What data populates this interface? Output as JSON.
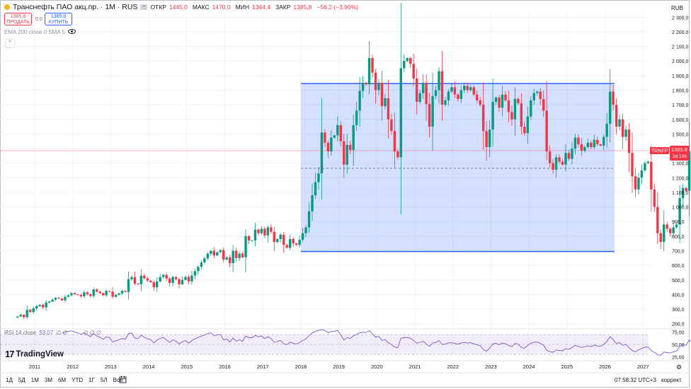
{
  "header": {
    "title": "Транснефть ПАО акц.пр. · 1М · RUS",
    "open_label": "ОТКР",
    "open": "1445,0",
    "high_label": "МАКС",
    "high": "1470,0",
    "low_label": "МИН",
    "low": "1344,4",
    "close_label": "ЗАКР",
    "close": "1385,8",
    "change": "−56,2 (−3,90%)"
  },
  "trade": {
    "sell_price": "1385,8",
    "sell_label": "ПРОДАТЬ",
    "spread": "0,0",
    "buy_price": "1385,8",
    "buy_label": "КУПИТЬ"
  },
  "indicator_label": "EMA 200 close 0 SMA 5",
  "collapse_icon": "chevron-up-icon",
  "rsi": {
    "label": "RSI 14 close",
    "value": "53,07",
    "extra1": "∅ ∅",
    "extra2": "∅ ∅ ∅"
  },
  "logo": {
    "mark": "17",
    "text": "TradingView"
  },
  "currency": "RUB",
  "price_tag": {
    "symbol": "TRNFP",
    "price": "1385,8",
    "countdown": "2d 16h"
  },
  "colors": {
    "up": "#089981",
    "down": "#f23645",
    "rect_fill": "#2962ff",
    "rsi_line": "#7e57c2",
    "rsi_band": "#7e57c2"
  },
  "bottom": {
    "timeframes": [
      "1Д",
      "5Д",
      "1М",
      "3М",
      "6М",
      "YTD",
      "1Г",
      "5Л",
      "Все"
    ],
    "time": "07:58:32 UTC+3",
    "adjust": "коррект."
  },
  "chart_data": {
    "type": "candlestick",
    "x_axis": {
      "labels": [
        "2011",
        "2012",
        "2013",
        "2014",
        "2015",
        "2016",
        "2017",
        "2018",
        "2019",
        "2020",
        "2021",
        "2022",
        "2023",
        "2024",
        "2025",
        "2026",
        "2027"
      ]
    },
    "y_axis": {
      "labels": [
        "200,0",
        "300,0",
        "400,0",
        "500,0",
        "600,0",
        "700,0",
        "800,0",
        "900,0",
        "1 000,0",
        "1 100,0",
        "1 200,0",
        "1 300,0",
        "1 400,0",
        "1 500,0",
        "1 600,0",
        "1 700,0",
        "1 800,0",
        "1 900,0",
        "2 000,0",
        "2 100,0",
        "2 200,0",
        "2 300,0"
      ],
      "range": [
        140,
        2370
      ]
    },
    "rsi_axis": {
      "labels": [
        "75,00",
        "50,00",
        "25,00"
      ],
      "range": [
        20,
        80
      ],
      "bands": [
        30,
        70
      ]
    },
    "rectangle": {
      "x_start": 2018.0,
      "x_end": 2026.25,
      "y_top": 1845,
      "y_bottom": 695
    },
    "dashed_level": 1265,
    "horizontal_price_line": 1385.8,
    "start_year": 2010.55,
    "closes": [
      250,
      262,
      245,
      295,
      280,
      305,
      320,
      330,
      312,
      345,
      352,
      365,
      378,
      372,
      360,
      385,
      395,
      410,
      402,
      398,
      388,
      415,
      402,
      390,
      435,
      420,
      410,
      395,
      425,
      420,
      385,
      398,
      408,
      425,
      418,
      505,
      520,
      475,
      470,
      530,
      510,
      495,
      485,
      450,
      490,
      520,
      535,
      510,
      480,
      520,
      505,
      470,
      500,
      520,
      490,
      530,
      560,
      590,
      620,
      648,
      680,
      700,
      668,
      690,
      705,
      640,
      655,
      615,
      700,
      650,
      680,
      655,
      800,
      770,
      770,
      845,
      820,
      850,
      805,
      860,
      830,
      760,
      780,
      810,
      740,
      720,
      780,
      750,
      740,
      775,
      820,
      860,
      970,
      1080,
      1170,
      1230,
      1510,
      1440,
      1380,
      1475,
      1490,
      1560,
      1450,
      1290,
      1425,
      1390,
      1560,
      1660,
      1795,
      1850,
      1840,
      2020,
      1920,
      1800,
      1850,
      1690,
      1745,
      1600,
      1520,
      1380,
      1340,
      1950,
      2000,
      2020,
      1980,
      1880,
      1720,
      1780,
      1850,
      1705,
      1550,
      1760,
      1800,
      1930,
      1700,
      1730,
      1790,
      1820,
      1770,
      1740,
      1800,
      1830,
      1800,
      1820,
      1770,
      1730,
      1700,
      1520,
      1410,
      1530,
      1720,
      1750,
      1680,
      1770,
      1730,
      1650,
      1600,
      1740,
      1710,
      1550,
      1505,
      1620,
      1730,
      1780,
      1790,
      1740,
      1660,
      1380,
      1300,
      1255,
      1340,
      1310,
      1290,
      1370,
      1330,
      1400,
      1475,
      1430,
      1385,
      1410,
      1440,
      1410,
      1460,
      1430,
      1420,
      1480,
      1570,
      1790,
      1700,
      1550,
      1600,
      1480,
      1530,
      1370,
      1210,
      1120,
      1200,
      1250,
      1300,
      1310,
      1120,
      1000,
      820,
      760,
      880,
      850,
      820,
      860,
      880,
      1060,
      1130,
      1110,
      1380,
      1250,
      1380,
      1420,
      1410,
      1500,
      1450,
      1540,
      1580,
      1640,
      1620,
      1590,
      1620,
      1420,
      1340,
      1250,
      1290,
      1100,
      1130,
      1230,
      1330,
      1260,
      1250,
      1290,
      1330,
      1290,
      1320,
      1410,
      1340,
      1390,
      1380,
      1400,
      1470,
      1445,
      1385.8
    ]
  }
}
